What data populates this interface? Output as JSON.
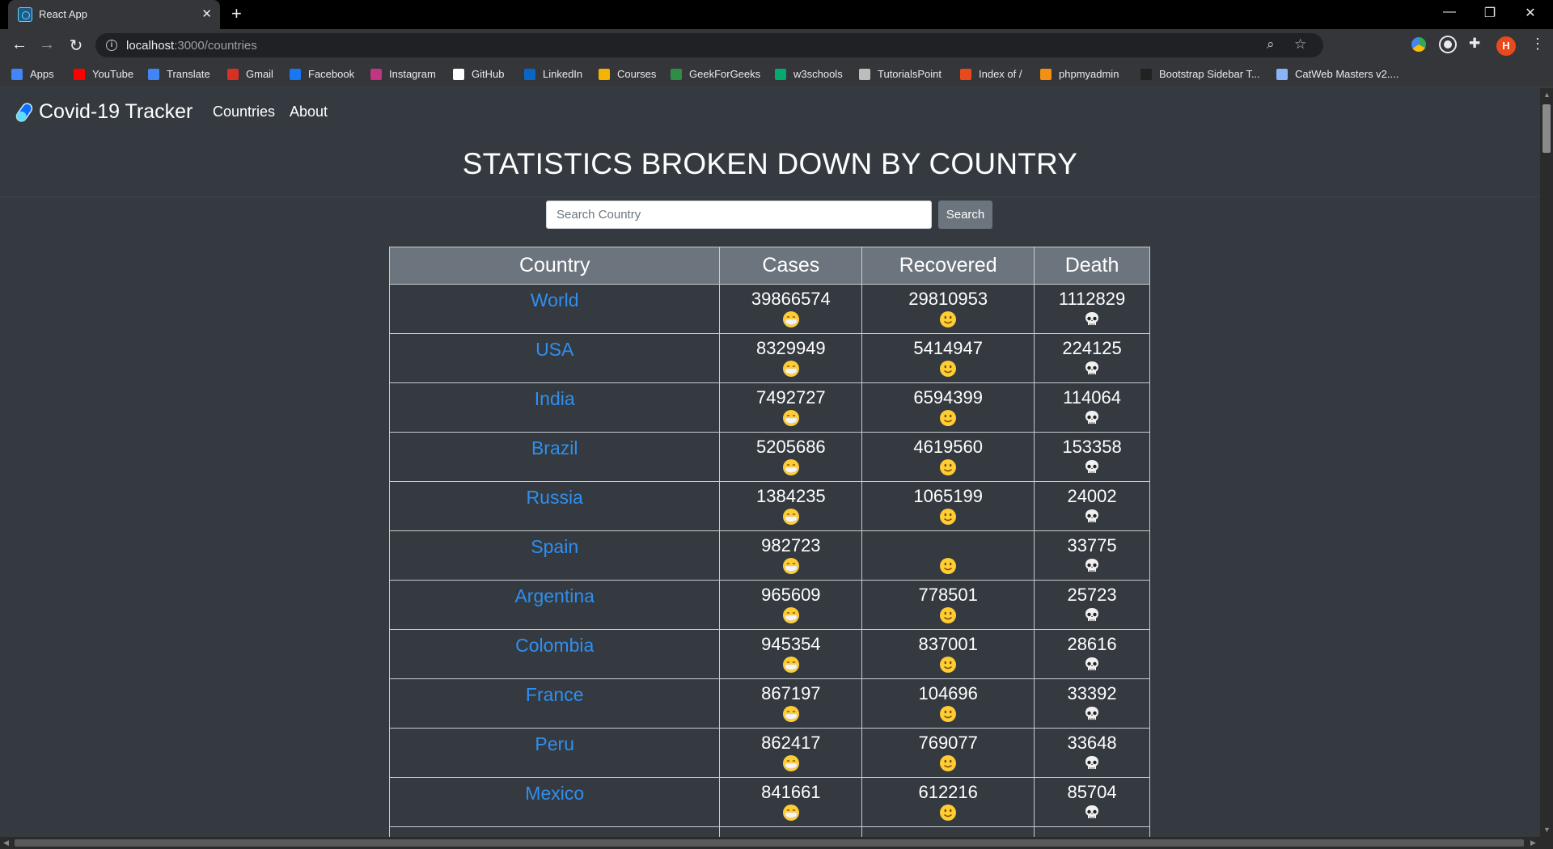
{
  "browser": {
    "tab_title": "React App",
    "url_host": "localhost",
    "url_path": ":3000/countries",
    "profile_initial": "H",
    "bookmarks": [
      {
        "label": "Apps",
        "icon": "apps-grid-icon",
        "color": "#4285f4"
      },
      {
        "label": "YouTube",
        "icon": "youtube-icon",
        "color": "#ff0000"
      },
      {
        "label": "Translate",
        "icon": "translate-icon",
        "color": "#4285f4"
      },
      {
        "label": "Gmail",
        "icon": "gmail-icon",
        "color": "#d93025"
      },
      {
        "label": "Facebook",
        "icon": "facebook-icon",
        "color": "#1877f2"
      },
      {
        "label": "Instagram",
        "icon": "instagram-icon",
        "color": "#c13584"
      },
      {
        "label": "GitHub",
        "icon": "github-icon",
        "color": "#ffffff"
      },
      {
        "label": "LinkedIn",
        "icon": "linkedin-icon",
        "color": "#0a66c2"
      },
      {
        "label": "Courses",
        "icon": "courses-icon",
        "color": "#f4b400"
      },
      {
        "label": "GeekForGeeks",
        "icon": "geeksforgeeks-icon",
        "color": "#2f8d46"
      },
      {
        "label": "w3schools",
        "icon": "w3schools-icon",
        "color": "#04aa6d"
      },
      {
        "label": "TutorialsPoint",
        "icon": "tutorialspoint-icon",
        "color": "#bdbdbd"
      },
      {
        "label": "Index of /",
        "icon": "index-of-icon",
        "color": "#e8491d"
      },
      {
        "label": "phpmyadmin",
        "icon": "phpmyadmin-icon",
        "color": "#f29111"
      },
      {
        "label": "Bootstrap Sidebar T...",
        "icon": "bootstrap-icon",
        "color": "#222222"
      },
      {
        "label": "CatWeb Masters v2....",
        "icon": "catweb-icon",
        "color": "#8ab4f8"
      }
    ]
  },
  "app": {
    "brand": "Covid-19 Tracker",
    "nav": [
      "Countries",
      "About"
    ],
    "heading": "STATISTICS BROKEN DOWN BY COUNTRY",
    "search_placeholder": "Search Country",
    "search_button": "Search",
    "columns": [
      "Country",
      "Cases",
      "Recovered",
      "Death"
    ],
    "rows": [
      {
        "country": "World",
        "cases": "39866574",
        "recovered": "29810953",
        "death": "1112829"
      },
      {
        "country": "USA",
        "cases": "8329949",
        "recovered": "5414947",
        "death": "224125"
      },
      {
        "country": "India",
        "cases": "7492727",
        "recovered": "6594399",
        "death": "114064"
      },
      {
        "country": "Brazil",
        "cases": "5205686",
        "recovered": "4619560",
        "death": "153358"
      },
      {
        "country": "Russia",
        "cases": "1384235",
        "recovered": "1065199",
        "death": "24002"
      },
      {
        "country": "Spain",
        "cases": "982723",
        "recovered": "",
        "death": "33775"
      },
      {
        "country": "Argentina",
        "cases": "965609",
        "recovered": "778501",
        "death": "25723"
      },
      {
        "country": "Colombia",
        "cases": "945354",
        "recovered": "837001",
        "death": "28616"
      },
      {
        "country": "France",
        "cases": "867197",
        "recovered": "104696",
        "death": "33392"
      },
      {
        "country": "Peru",
        "cases": "862417",
        "recovered": "769077",
        "death": "33648"
      },
      {
        "country": "Mexico",
        "cases": "841661",
        "recovered": "612216",
        "death": "85704"
      },
      {
        "country": "",
        "cases": "",
        "recovered": "",
        "death": ""
      }
    ],
    "emoji": {
      "cases": "masked-face-icon",
      "recovered": "smiley-face-icon",
      "death": "skull-icon"
    },
    "colors": {
      "background": "#343a40",
      "link": "#2f8ff0",
      "header": "#6c757d"
    }
  }
}
